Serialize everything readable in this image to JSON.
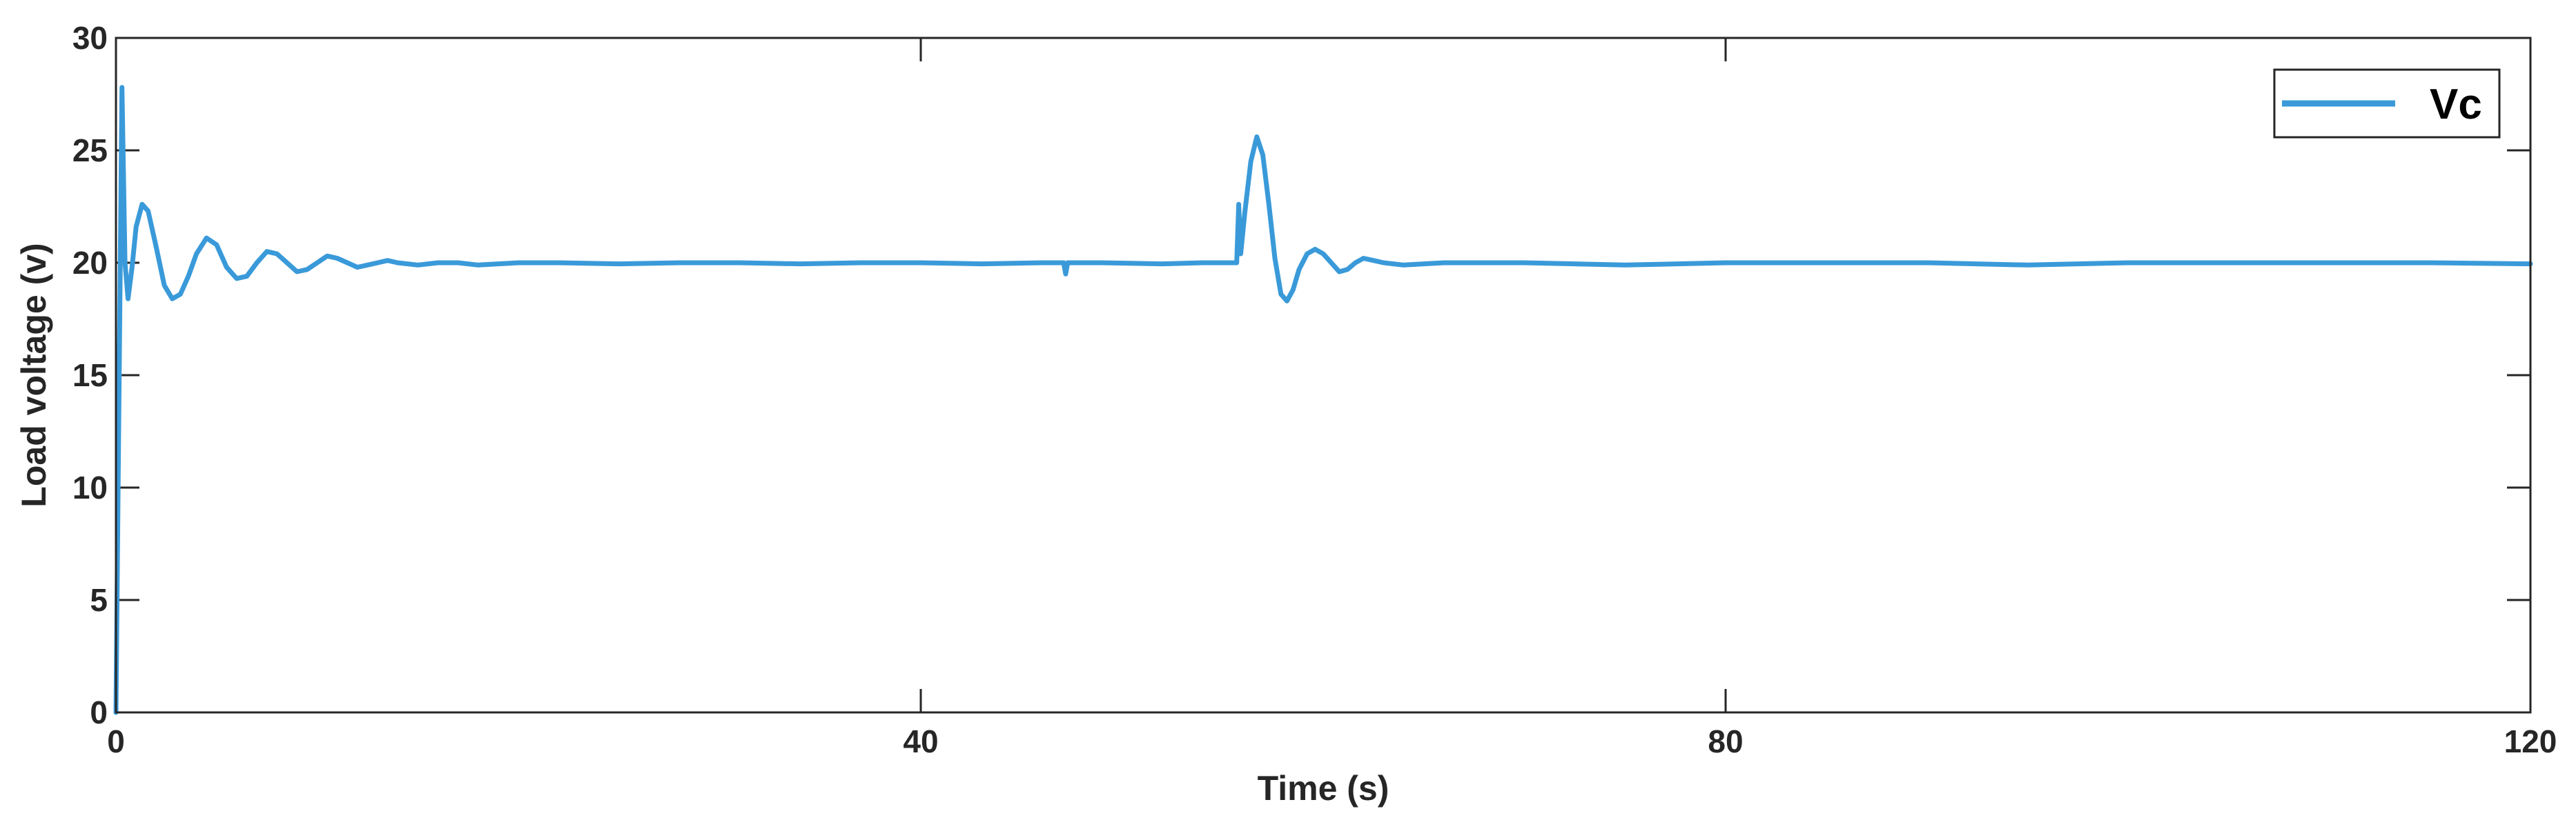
{
  "chart_data": {
    "type": "line",
    "title": "",
    "xlabel": "Time (s)",
    "ylabel": "Load voltage (v)",
    "xlim": [
      0,
      120
    ],
    "ylim": [
      0,
      30
    ],
    "xticks": [
      0,
      40,
      80,
      120
    ],
    "yticks": [
      0,
      5,
      10,
      15,
      20,
      25,
      30
    ],
    "xtick_labels": [
      "0",
      "40",
      "80",
      "120"
    ],
    "ytick_labels": [
      "0",
      "5",
      "10",
      "15",
      "20",
      "25",
      "30"
    ],
    "grid": false,
    "legend": {
      "position": "top-right",
      "entries": [
        "Vc"
      ]
    },
    "series": [
      {
        "name": "Vc",
        "color": "#3a9ad9",
        "x": [
          0,
          0.3,
          0.45,
          0.6,
          0.8,
          1.0,
          1.3,
          1.6,
          2.0,
          2.4,
          2.8,
          3.2,
          3.6,
          4.0,
          4.5,
          5.0,
          5.5,
          6.0,
          6.5,
          7.0,
          7.5,
          8.0,
          8.5,
          9.0,
          9.5,
          10.0,
          10.5,
          11.0,
          11.5,
          12.0,
          12.5,
          13.0,
          13.5,
          14.0,
          15.0,
          16.0,
          17.0,
          18.0,
          20.0,
          22.0,
          25.0,
          28.0,
          31.0,
          34.0,
          37.0,
          40.0,
          43.0,
          46.0,
          47.1,
          47.2,
          47.3,
          49.0,
          52.0,
          54.0,
          55.7,
          55.8,
          55.9,
          56.1,
          56.4,
          56.7,
          57.0,
          57.3,
          57.6,
          57.9,
          58.2,
          58.5,
          58.8,
          59.2,
          59.6,
          60.0,
          60.4,
          60.8,
          61.2,
          61.6,
          62.0,
          62.5,
          63.0,
          64.0,
          66.0,
          70.0,
          75.0,
          80.0,
          85.0,
          90.0,
          95.0,
          100.0,
          105.0,
          110.0,
          115.0,
          120.0
        ],
        "y": [
          0.0,
          27.8,
          20.0,
          18.4,
          19.8,
          21.6,
          22.6,
          22.3,
          20.7,
          19.0,
          18.4,
          18.6,
          19.4,
          20.4,
          21.1,
          20.8,
          19.8,
          19.3,
          19.4,
          20.0,
          20.5,
          20.4,
          20.0,
          19.6,
          19.7,
          20.0,
          20.3,
          20.2,
          20.0,
          19.8,
          19.9,
          20.0,
          20.1,
          20.0,
          19.9,
          20.0,
          20.0,
          19.9,
          20.0,
          20.0,
          19.95,
          20.0,
          20.0,
          19.95,
          20.0,
          20.0,
          19.95,
          20.0,
          20.0,
          19.5,
          20.0,
          20.0,
          19.95,
          20.0,
          20.0,
          22.6,
          20.4,
          22.2,
          24.5,
          25.6,
          24.8,
          22.6,
          20.2,
          18.6,
          18.3,
          18.8,
          19.7,
          20.4,
          20.6,
          20.4,
          20.0,
          19.6,
          19.7,
          20.0,
          20.2,
          20.1,
          20.0,
          19.9,
          20.0,
          20.0,
          19.9,
          20.0,
          20.0,
          20.0,
          19.9,
          20.0,
          20.0,
          20.0,
          20.0,
          19.95
        ]
      }
    ]
  }
}
